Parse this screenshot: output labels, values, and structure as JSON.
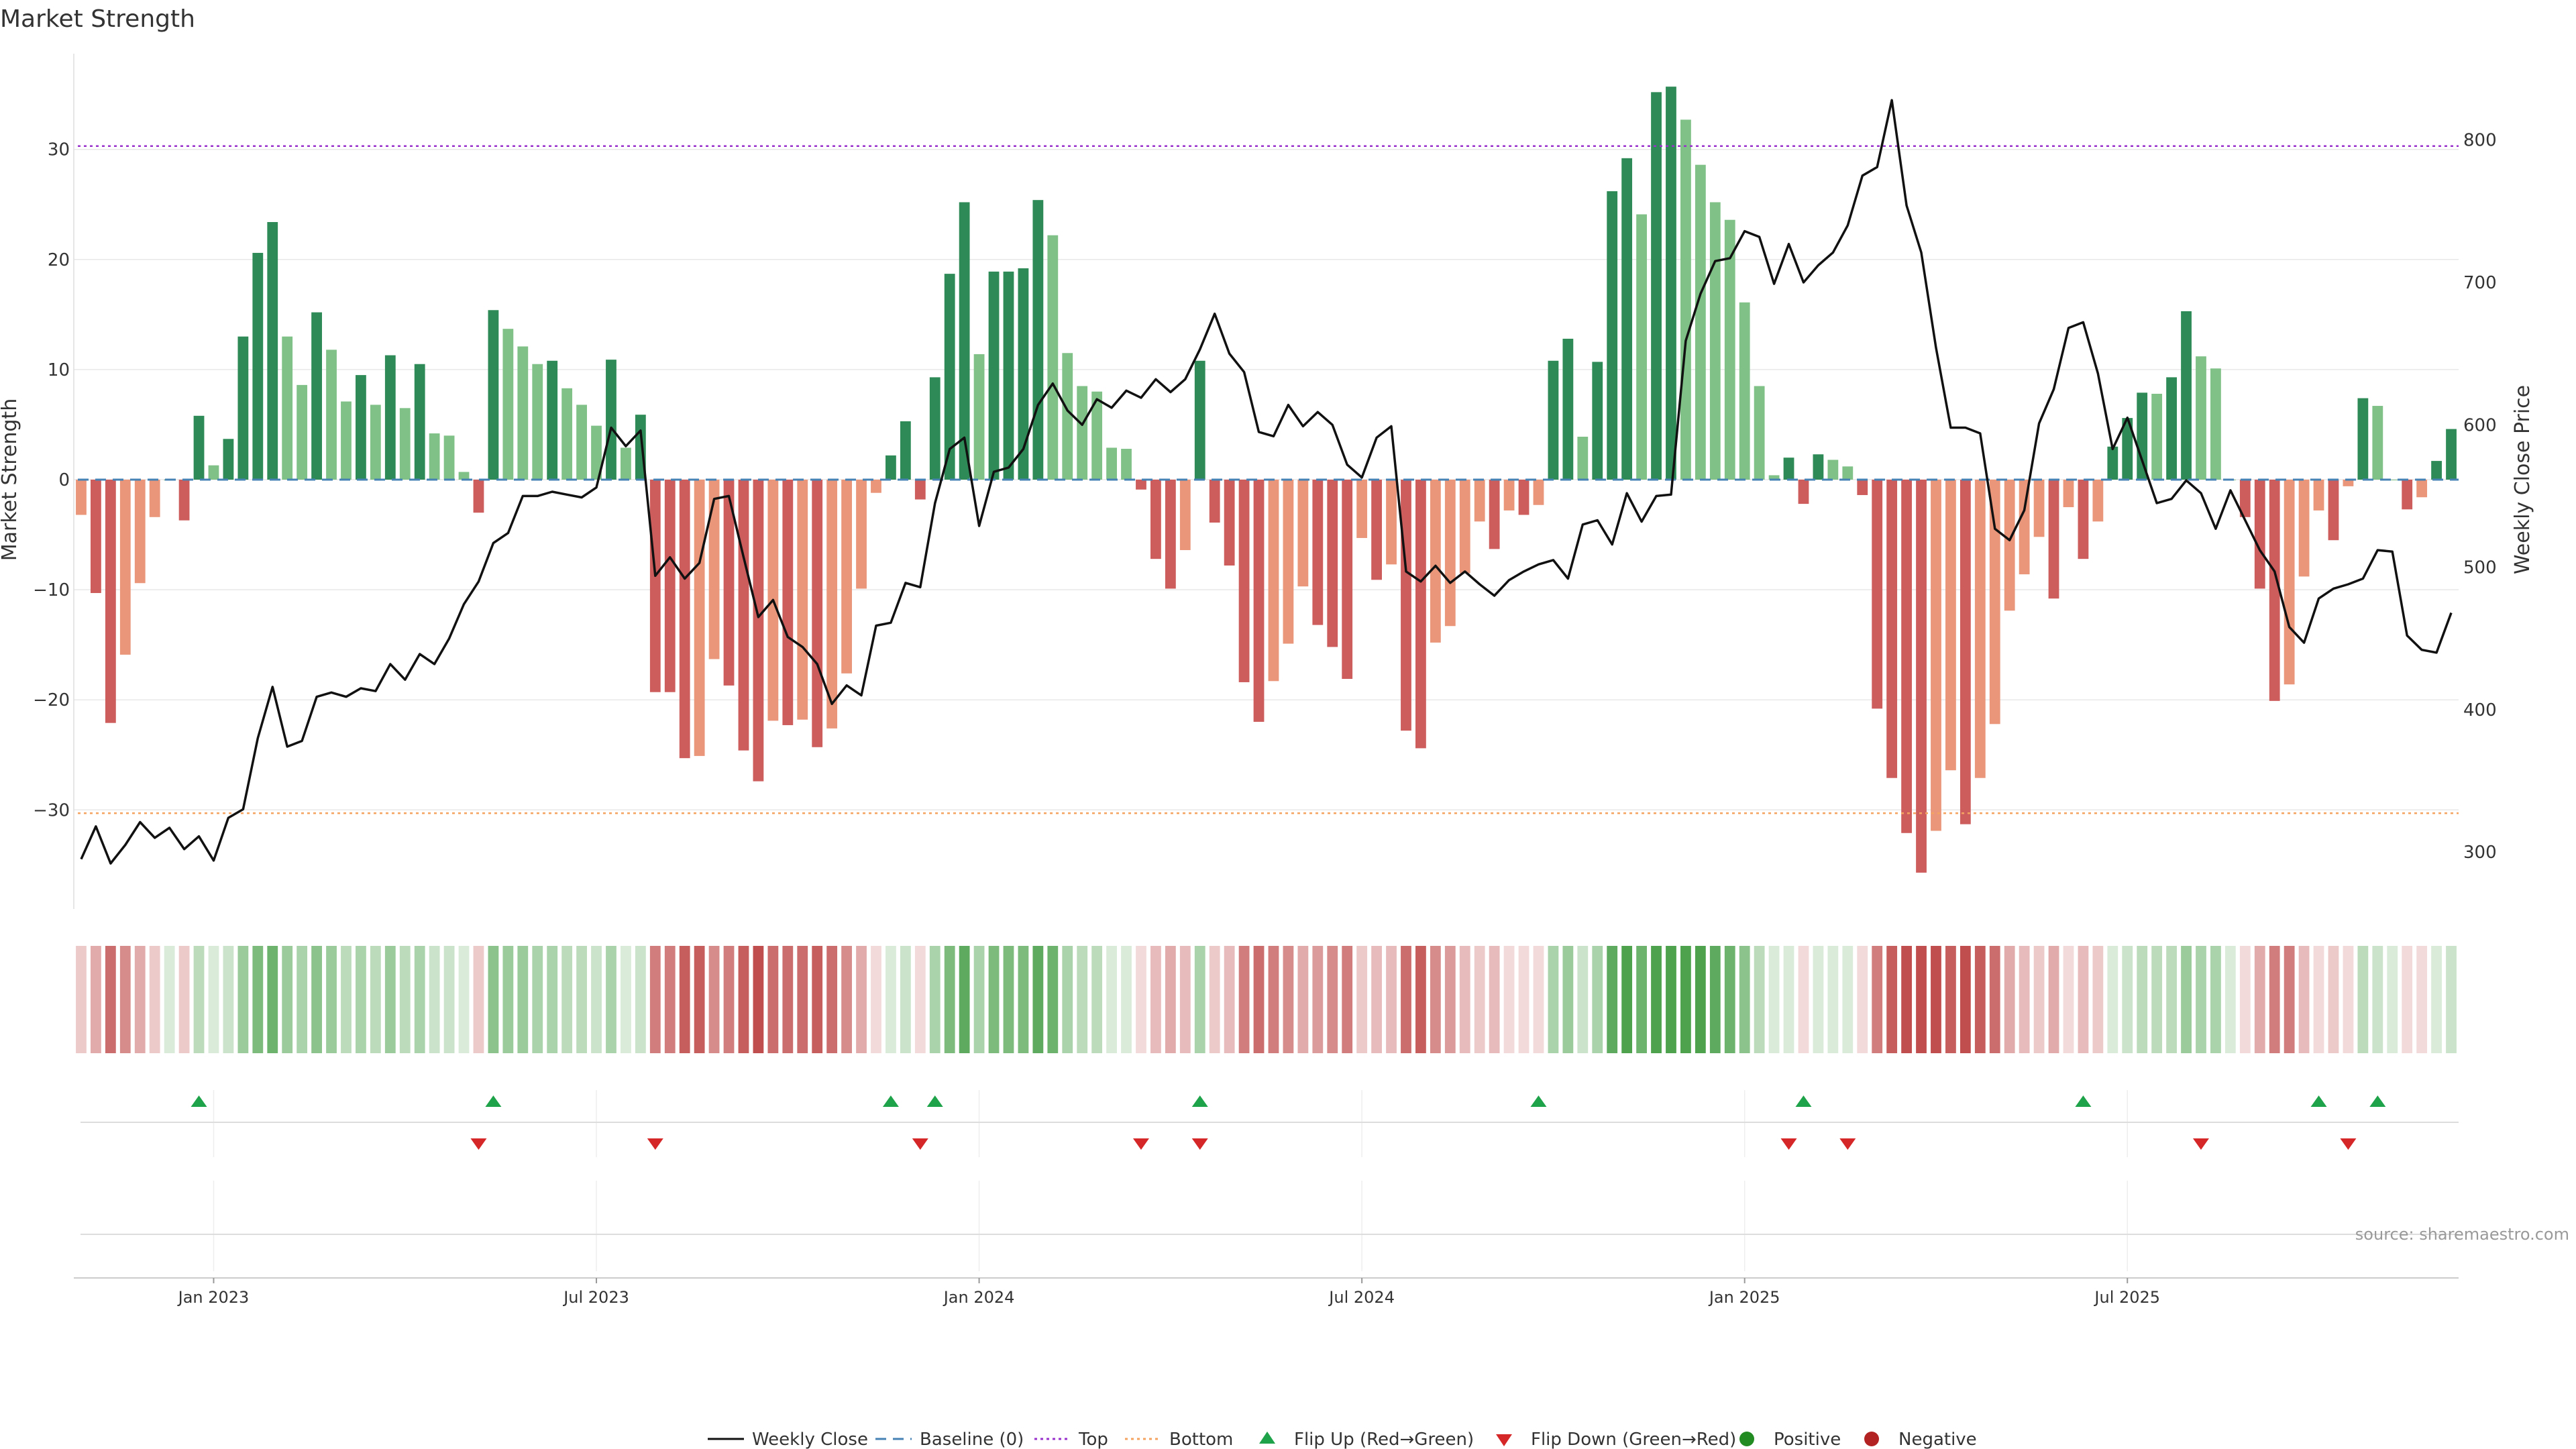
{
  "title": "Market Strength",
  "source": "source: sharemaestro.com",
  "colors": {
    "strong_pos": "#2e8b57",
    "weak_pos": "#7fc187",
    "strong_neg": "#cd5c5c",
    "weak_neg": "#e9967a",
    "price_line": "#111111",
    "baseline": "#4682b4",
    "top_line": "#9932cc",
    "bottom_line": "#f4a460",
    "flip_up": "#1fa34a",
    "flip_down": "#d62728",
    "positive": "#228b22",
    "negative": "#b22222"
  },
  "chart_data": {
    "type": "bar",
    "title": "Market Strength",
    "ylabel": "Market Strength",
    "y2label": "Weekly Close Price",
    "ylim": [
      -39,
      39
    ],
    "y2lim": [
      260,
      863
    ],
    "yticks": [
      -30,
      -20,
      -10,
      0,
      10,
      20,
      30
    ],
    "yticklabels": [
      "−30",
      "−20",
      "−10",
      "0",
      "10",
      "20",
      "30"
    ],
    "y2ticks": [
      300,
      400,
      500,
      600,
      700,
      800
    ],
    "y2ticklabels": [
      "300",
      "400",
      "500",
      "600",
      "700",
      "800"
    ],
    "top_level": 30.3,
    "bottom_level": -30.3,
    "x_ticks": [
      {
        "week": 9.5,
        "label": "Jan 2023"
      },
      {
        "week": 35.5,
        "label": "Jul 2023"
      },
      {
        "week": 61.5,
        "label": "Jan 2024"
      },
      {
        "week": 87.5,
        "label": "Jul 2024"
      },
      {
        "week": 113.5,
        "label": "Jan 2025"
      },
      {
        "week": 139.5,
        "label": "Jul 2025"
      }
    ],
    "strength": [
      -3.2,
      -10.3,
      -22.1,
      -15.9,
      -9.4,
      -3.4,
      0,
      -3.7,
      5.8,
      1.3,
      3.7,
      13,
      20.6,
      23.4,
      13,
      8.6,
      15.2,
      11.8,
      7.1,
      9.5,
      6.8,
      11.3,
      6.5,
      10.5,
      4.2,
      4,
      0.7,
      -3,
      15.4,
      13.7,
      12.1,
      10.5,
      10.8,
      8.3,
      6.8,
      4.9,
      10.9,
      2.9,
      5.9,
      -19.3,
      -19.3,
      -25.3,
      -25.1,
      -16.3,
      -18.7,
      -24.6,
      -27.4,
      -21.9,
      -22.3,
      -21.8,
      -24.3,
      -22.6,
      -17.6,
      -9.9,
      -1.2,
      2.2,
      5.3,
      -1.8,
      9.3,
      18.7,
      25.2,
      11.4,
      18.9,
      18.9,
      19.2,
      25.4,
      22.2,
      11.5,
      8.5,
      8,
      2.9,
      2.8,
      -0.9,
      -7.2,
      -9.9,
      -6.4,
      10.8,
      -3.9,
      -7.8,
      -18.4,
      -22,
      -18.3,
      -14.9,
      -9.7,
      -13.2,
      -15.2,
      -18.1,
      -5.3,
      -9.1,
      -7.7,
      -22.8,
      -24.4,
      -14.8,
      -13.3,
      -8.5,
      -3.8,
      -6.3,
      -2.8,
      -3.2,
      -2.3,
      10.8,
      12.8,
      3.9,
      10.7,
      26.2,
      29.2,
      24.1,
      35.2,
      35.7,
      32.7,
      28.6,
      25.2,
      23.6,
      16.1,
      8.5,
      0.4,
      2,
      -2.2,
      2.3,
      1.8,
      1.2,
      -1.4,
      -20.8,
      -27.1,
      -32.1,
      -35.7,
      -31.9,
      -26.4,
      -31.3,
      -27.1,
      -22.2,
      -11.9,
      -8.6,
      -5.2,
      -10.8,
      -2.5,
      -7.2,
      -3.8,
      3,
      5.6,
      7.9,
      7.8,
      9.3,
      15.3,
      11.2,
      10.1,
      0,
      -3.4,
      -9.9,
      -20.1,
      -18.6,
      -8.8,
      -2.8,
      -5.5,
      -0.6,
      7.4,
      6.7,
      0,
      -2.7,
      -1.6,
      1.7,
      4.6
    ],
    "close_price": [
      295,
      318,
      292,
      305,
      321,
      310,
      317,
      302,
      311,
      294,
      324,
      330,
      380,
      416,
      374,
      378,
      409,
      412,
      409,
      415,
      413,
      432,
      421,
      439,
      432,
      450,
      474,
      490,
      517,
      524,
      550,
      550,
      553,
      551,
      549,
      556,
      598,
      585,
      596,
      494,
      507,
      492,
      503,
      548,
      550,
      507,
      465,
      477,
      451,
      444,
      432,
      404,
      417,
      410,
      459,
      461,
      489,
      486,
      545,
      583,
      591,
      529,
      567,
      570,
      583,
      614,
      629,
      610,
      600,
      618,
      612,
      624,
      619,
      632,
      623,
      632,
      653,
      678,
      650,
      637,
      595,
      592,
      614,
      599,
      609,
      600,
      572,
      563,
      591,
      599,
      497,
      490,
      501,
      489,
      497,
      488,
      480,
      491,
      497,
      502,
      505,
      492,
      530,
      533,
      516,
      552,
      532,
      550,
      551,
      659,
      692,
      715,
      717,
      736,
      732,
      699,
      727,
      700,
      712,
      721,
      740,
      775,
      781,
      828,
      754,
      721,
      654,
      598,
      598,
      594,
      527,
      519,
      540,
      601,
      625,
      668,
      672,
      636,
      583,
      605,
      575,
      545,
      548,
      561,
      552,
      527,
      554,
      533,
      512,
      497,
      458,
      447,
      478,
      485,
      488,
      492,
      512,
      511,
      452,
      442,
      440,
      468
    ],
    "heatmap_intensity": [
      0.2,
      0.4,
      0.8,
      0.6,
      0.4,
      0.2,
      0.1,
      0.2,
      0.3,
      0.1,
      0.2,
      0.5,
      0.7,
      0.8,
      0.5,
      0.4,
      0.6,
      0.5,
      0.3,
      0.4,
      0.3,
      0.5,
      0.3,
      0.4,
      0.2,
      0.2,
      0.1,
      0.2,
      0.6,
      0.5,
      0.5,
      0.4,
      0.4,
      0.3,
      0.3,
      0.2,
      0.4,
      0.1,
      0.2,
      0.7,
      0.7,
      0.9,
      0.9,
      0.6,
      0.7,
      0.9,
      1,
      0.8,
      0.8,
      0.8,
      0.9,
      0.8,
      0.6,
      0.4,
      0.1,
      0.1,
      0.2,
      0.1,
      0.4,
      0.7,
      0.9,
      0.4,
      0.7,
      0.7,
      0.7,
      0.9,
      0.8,
      0.4,
      0.3,
      0.3,
      0.1,
      0.1,
      0.1,
      0.3,
      0.4,
      0.3,
      0.4,
      0.2,
      0.3,
      0.7,
      0.8,
      0.7,
      0.6,
      0.4,
      0.5,
      0.6,
      0.7,
      0.2,
      0.3,
      0.3,
      0.8,
      0.9,
      0.6,
      0.5,
      0.3,
      0.2,
      0.3,
      0.1,
      0.1,
      0.1,
      0.4,
      0.5,
      0.2,
      0.4,
      0.9,
      1,
      0.8,
      1,
      1,
      1,
      1,
      0.9,
      0.8,
      0.6,
      0.3,
      0.1,
      0.1,
      0.1,
      0.1,
      0.1,
      0.1,
      0.1,
      0.7,
      0.9,
      1,
      1,
      1,
      0.9,
      1,
      0.9,
      0.8,
      0.4,
      0.3,
      0.2,
      0.4,
      0.1,
      0.3,
      0.2,
      0.1,
      0.2,
      0.3,
      0.3,
      0.3,
      0.5,
      0.4,
      0.4,
      0.1,
      0.1,
      0.4,
      0.7,
      0.7,
      0.3,
      0.1,
      0.2,
      0.1,
      0.3,
      0.2,
      0.1,
      0.1,
      0.1,
      0.1,
      0.2
    ],
    "flip_up_weeks": [
      8,
      28,
      55,
      58,
      76,
      99,
      117,
      136,
      152,
      156
    ],
    "flip_down_weeks": [
      27,
      39,
      57,
      72,
      76,
      116,
      120,
      144,
      154
    ]
  },
  "legend": [
    {
      "key": "weekly-close",
      "label": "Weekly Close"
    },
    {
      "key": "baseline",
      "label": "Baseline (0)"
    },
    {
      "key": "top",
      "label": "Top"
    },
    {
      "key": "bottom",
      "label": "Bottom"
    },
    {
      "key": "flip-up",
      "label": "Flip Up (Red→Green)"
    },
    {
      "key": "flip-down",
      "label": "Flip Down (Green→Red)"
    },
    {
      "key": "positive",
      "label": "Positive"
    },
    {
      "key": "negative",
      "label": "Negative"
    }
  ]
}
